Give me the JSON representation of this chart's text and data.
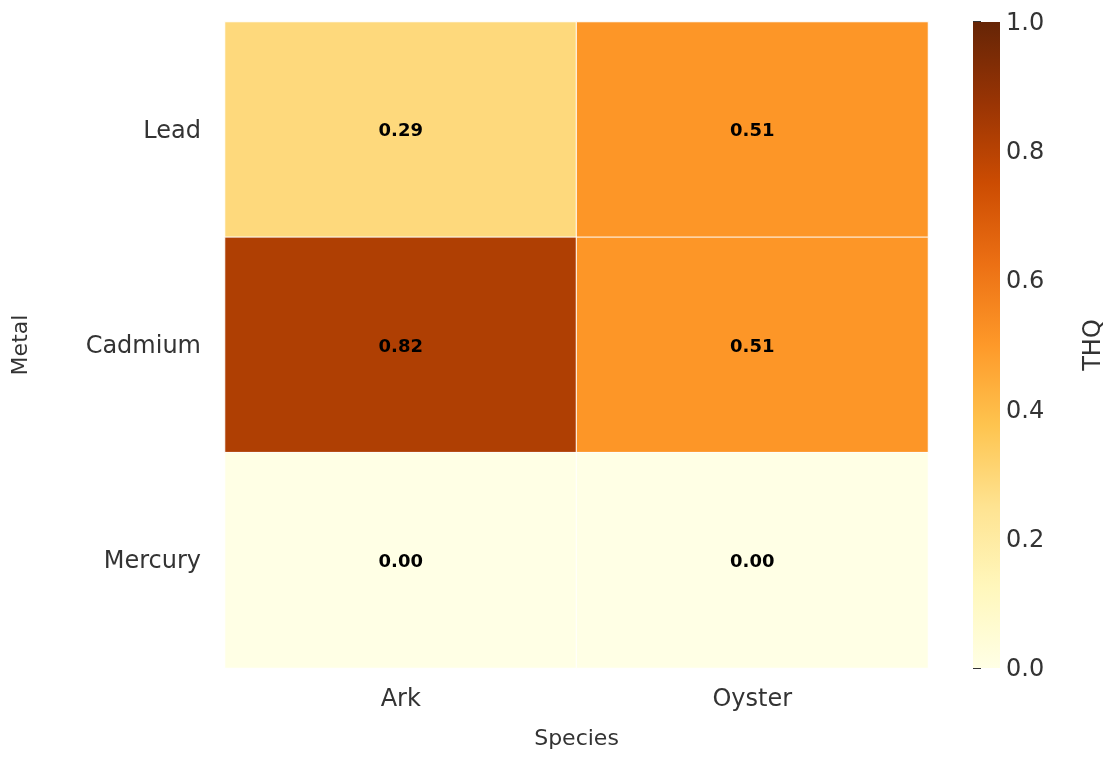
{
  "chart_data": {
    "type": "heatmap",
    "xlabel": "Species",
    "ylabel": "Metal",
    "clabel": "THQ",
    "categories": [
      "Ark",
      "Oyster"
    ],
    "y_categories": [
      "Lead",
      "Cadmium",
      "Mercury"
    ],
    "cells": [
      [
        0.29,
        0.51
      ],
      [
        0.82,
        0.51
      ],
      [
        0.0,
        0.0
      ]
    ],
    "cell_labels": [
      [
        "0.29",
        "0.51"
      ],
      [
        "0.82",
        "0.51"
      ],
      [
        "0.00",
        "0.00"
      ]
    ],
    "clim": [
      0,
      1
    ],
    "cticks": [
      {
        "value": 0,
        "label": "0.0"
      },
      {
        "value": 0.2,
        "label": "0.2"
      },
      {
        "value": 0.4,
        "label": "0.4"
      },
      {
        "value": 0.6,
        "label": "0.6"
      },
      {
        "value": 0.8,
        "label": "0.8"
      },
      {
        "value": 1,
        "label": "1.0"
      }
    ]
  }
}
